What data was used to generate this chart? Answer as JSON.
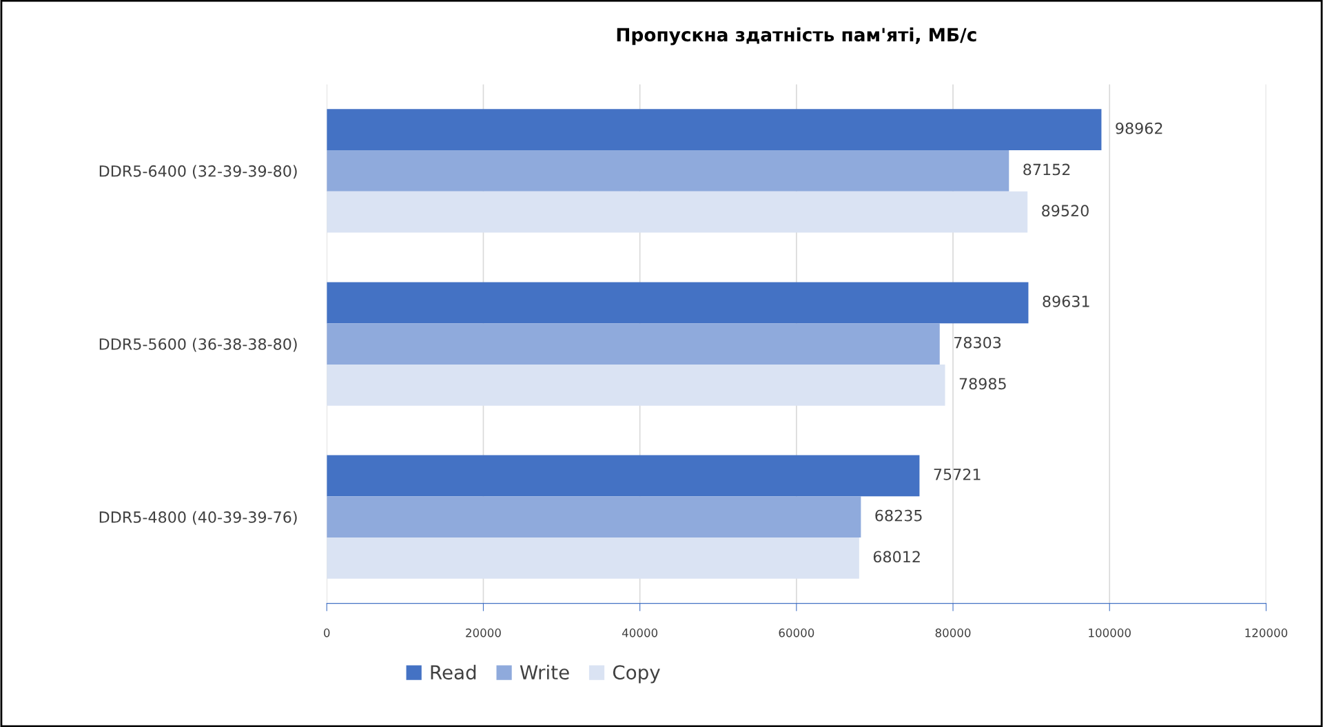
{
  "chart_data": {
    "type": "bar",
    "orientation": "horizontal",
    "title": "Пропускна здатність пам'яті, МБ/с",
    "categories": [
      "DDR5-6400 (32-39-39-80)",
      "DDR5-5600 (36-38-38-80)",
      "DDR5-4800 (40-39-39-76)"
    ],
    "series": [
      {
        "name": "Read",
        "color": "#4472c4",
        "values": [
          98962,
          89631,
          75721
        ]
      },
      {
        "name": "Write",
        "color": "#8faadc",
        "values": [
          87152,
          78303,
          68235
        ]
      },
      {
        "name": "Copy",
        "color": "#dae3f3",
        "values": [
          89520,
          78985,
          68012
        ]
      }
    ],
    "xlim": [
      0,
      120000
    ],
    "xticks": [
      0,
      20000,
      40000,
      60000,
      80000,
      100000,
      120000
    ],
    "grid": "x",
    "legend": "bottom",
    "data_labels": true
  }
}
